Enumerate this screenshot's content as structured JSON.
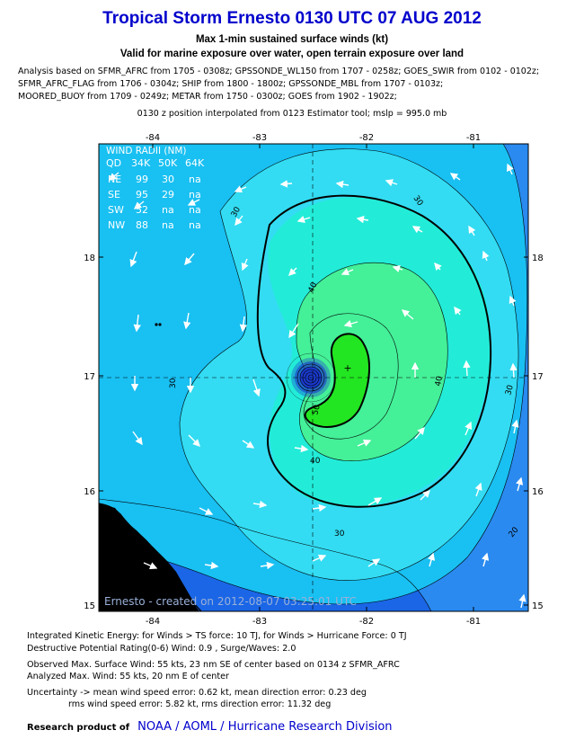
{
  "title": "Tropical Storm Ernesto 0130 UTC 07 AUG 2012",
  "subtitle1": "Max 1-min sustained surface winds (kt)",
  "subtitle2": "Valid for marine exposure over water, open terrain exposure over land",
  "analysis_lines": [
    "Analysis based on SFMR_AFRC from 1705 - 0308z; GPSSONDE_WL150 from 1707 - 0258z; GOES_SWIR from 0102 - 0102z;",
    "SFMR_AFRC_FLAG from 1706 - 0304z; SHIP from 1800 - 1800z; GPSSONDE_MBL from 1707 - 0103z;",
    "MOORED_BUOY from 1709 - 0249z; METAR from 1750 - 0300z; GOES from 1902 - 1902z;"
  ],
  "position_line": "0130 z position interpolated from 0123 Estimator tool; mslp = 995.0 mb",
  "map": {
    "lon_ticks": [
      "-84",
      "-83",
      "-82",
      "-81"
    ],
    "lat_ticks": [
      "18",
      "17",
      "16",
      "15"
    ],
    "center_lon": -82.5,
    "center_lat": 16.97,
    "lon_range": [
      -84.5,
      -80.5
    ],
    "lat_range": [
      15.0,
      18.9
    ],
    "contour_labels": [
      "30",
      "30",
      "30",
      "30",
      "40",
      "40",
      "40",
      "50",
      "20"
    ],
    "credit": "Ernesto - created on 2012-08-07 03:25:01 UTC",
    "colors": {
      "ocean_deep": "#1a66e6",
      "band_20": "#2a8af0",
      "band_30": "#19c0f2",
      "band_40": "#33dcf2",
      "band_50": "#22ecd8",
      "band_60": "#44f098",
      "band_core": "#22e622",
      "eye": "#1a3acc",
      "land": "#000000"
    }
  },
  "wind_radii": {
    "title": "WIND RADII (NM)",
    "header": [
      "QD",
      "34K",
      "50K",
      "64K"
    ],
    "rows": [
      [
        "NE",
        "99",
        "30",
        "na"
      ],
      [
        "SE",
        "95",
        "29",
        "na"
      ],
      [
        "SW",
        "52",
        "na",
        "na"
      ],
      [
        "NW",
        "88",
        "na",
        "na"
      ]
    ]
  },
  "footer": {
    "ike": "Integrated Kinetic Energy: for Winds > TS force: 10 TJ, for Winds > Hurricane Force: 0 TJ",
    "dpr": "Destructive Potential Rating(0-6)   Wind: 0.9 , Surge/Waves: 2.0",
    "observed": "Observed Max. Surface Wind: 55 kts, 23 nm SE of center based on 0134 z SFMR_AFRC",
    "analyzed": "Analyzed Max. Wind: 55 kts, 20 nm  E of center",
    "uncertainty1": "Uncertainty -> mean wind speed error: 0.62 kt, mean direction error: 0.23 deg",
    "uncertainty2": "rms wind speed error: 5.82 kt, rms direction error: 11.32 deg",
    "research_label": "Research product of",
    "research_org": "NOAA  /  AOML  /  Hurricane Research Division"
  }
}
